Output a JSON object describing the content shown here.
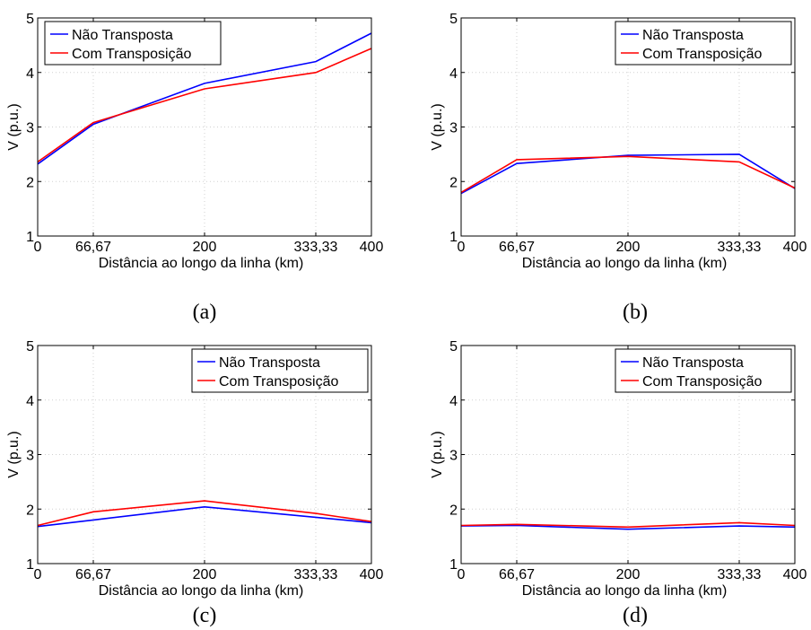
{
  "chart_data": [
    {
      "type": "line",
      "caption": "(a)",
      "xlabel": "Distância ao longo da linha (km)",
      "ylabel": "V (p.u.)",
      "xlim": [
        0,
        400
      ],
      "ylim": [
        1,
        5
      ],
      "x_ticks": [
        0,
        66.67,
        200,
        333.33,
        400
      ],
      "x_tick_labels": [
        "0",
        "66,67",
        "200",
        "333,33",
        "400"
      ],
      "y_ticks": [
        1,
        2,
        3,
        4,
        5
      ],
      "y_tick_labels": [
        "1",
        "2",
        "3",
        "4",
        "5"
      ],
      "grid": true,
      "legend_position": "top-left",
      "series": [
        {
          "name": "Não Transposta",
          "color": "#0000ff",
          "x": [
            0,
            66.67,
            200,
            333.33,
            400
          ],
          "y": [
            2.32,
            3.05,
            3.8,
            4.2,
            4.72
          ]
        },
        {
          "name": "Com Transposição",
          "color": "#ff0000",
          "x": [
            0,
            66.67,
            200,
            333.33,
            400
          ],
          "y": [
            2.36,
            3.08,
            3.7,
            4.0,
            4.44
          ]
        }
      ]
    },
    {
      "type": "line",
      "caption": "(b)",
      "xlabel": "Distância ao longo da linha (km)",
      "ylabel": "V (p.u.)",
      "xlim": [
        0,
        400
      ],
      "ylim": [
        1,
        5
      ],
      "x_ticks": [
        0,
        66.67,
        200,
        333.33,
        400
      ],
      "x_tick_labels": [
        "0",
        "66,67",
        "200",
        "333,33",
        "400"
      ],
      "y_ticks": [
        1,
        2,
        3,
        4,
        5
      ],
      "y_tick_labels": [
        "1",
        "2",
        "3",
        "4",
        "5"
      ],
      "grid": true,
      "legend_position": "top-right",
      "series": [
        {
          "name": "Não Transposta",
          "color": "#0000ff",
          "x": [
            0,
            66.67,
            200,
            333.33,
            400
          ],
          "y": [
            1.78,
            2.33,
            2.48,
            2.5,
            1.87
          ]
        },
        {
          "name": "Com Transposição",
          "color": "#ff0000",
          "x": [
            0,
            66.67,
            200,
            333.33,
            400
          ],
          "y": [
            1.8,
            2.4,
            2.46,
            2.36,
            1.88
          ]
        }
      ]
    },
    {
      "type": "line",
      "caption": "(c)",
      "xlabel": "Distância ao longo da linha (km)",
      "ylabel": "V (p.u.)",
      "xlim": [
        0,
        400
      ],
      "ylim": [
        1,
        5
      ],
      "x_ticks": [
        0,
        66.67,
        200,
        333.33,
        400
      ],
      "x_tick_labels": [
        "0",
        "66,67",
        "200",
        "333,33",
        "400"
      ],
      "y_ticks": [
        1,
        2,
        3,
        4,
        5
      ],
      "y_tick_labels": [
        "1",
        "2",
        "3",
        "4",
        "5"
      ],
      "grid": true,
      "legend_position": "top-right",
      "series": [
        {
          "name": "Não Transposta",
          "color": "#0000ff",
          "x": [
            0,
            66.67,
            200,
            333.33,
            400
          ],
          "y": [
            1.68,
            1.8,
            2.04,
            1.85,
            1.75
          ]
        },
        {
          "name": "Com Transposição",
          "color": "#ff0000",
          "x": [
            0,
            66.67,
            200,
            333.33,
            400
          ],
          "y": [
            1.7,
            1.95,
            2.15,
            1.92,
            1.77
          ]
        }
      ]
    },
    {
      "type": "line",
      "caption": "(d)",
      "xlabel": "Distância ao longo da linha (km)",
      "ylabel": "V (p.u.)",
      "xlim": [
        0,
        400
      ],
      "ylim": [
        1,
        5
      ],
      "x_ticks": [
        0,
        66.67,
        200,
        333.33,
        400
      ],
      "x_tick_labels": [
        "0",
        "66,67",
        "200",
        "333,33",
        "400"
      ],
      "y_ticks": [
        1,
        2,
        3,
        4,
        5
      ],
      "y_tick_labels": [
        "1",
        "2",
        "3",
        "4",
        "5"
      ],
      "grid": true,
      "legend_position": "top-right",
      "series": [
        {
          "name": "Não Transposta",
          "color": "#0000ff",
          "x": [
            0,
            66.67,
            200,
            333.33,
            400
          ],
          "y": [
            1.69,
            1.7,
            1.63,
            1.69,
            1.67
          ]
        },
        {
          "name": "Com Transposição",
          "color": "#ff0000",
          "x": [
            0,
            66.67,
            200,
            333.33,
            400
          ],
          "y": [
            1.7,
            1.72,
            1.67,
            1.75,
            1.7
          ]
        }
      ]
    }
  ]
}
